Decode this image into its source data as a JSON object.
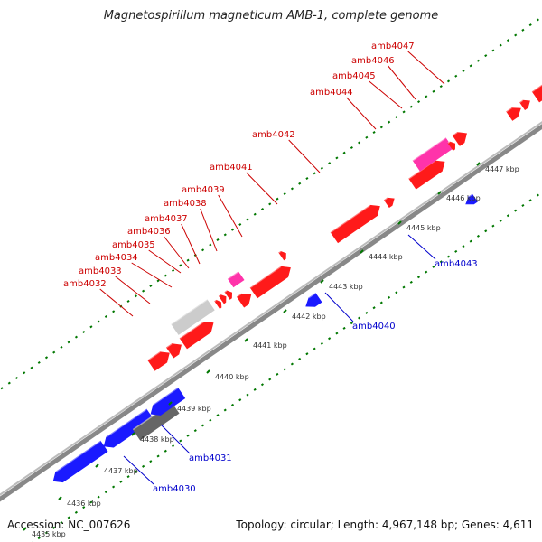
{
  "title": "Magnetospirillum magneticum AMB-1, complete genome",
  "footer": {
    "accession": "Accession: NC_007626",
    "summary": "Topology: circular; Length: 4,967,148 bp; Genes: 4,611"
  },
  "colors": {
    "forward_gene": "#ff1a1a",
    "reverse_gene": "#1a1aff",
    "rna_gene": "#ff33aa",
    "pseudo_gene_light": "#cccccc",
    "pseudo_gene_dark": "#666666",
    "backbone": "#888888",
    "tick_green": "#007700",
    "label_forward": "#cc0000",
    "label_reverse": "#0000cc"
  },
  "scale_labels": [
    "4435 kbp",
    "4436 kbp",
    "4437 kbp",
    "4438 kbp",
    "4439 kbp",
    "4440 kbp",
    "4441 kbp",
    "4442 kbp",
    "4443 kbp",
    "4444 kbp",
    "4445 kbp",
    "4446 kbp",
    "4447 kbp"
  ],
  "forward_labels": [
    "amb4032",
    "amb4033",
    "amb4034",
    "amb4035",
    "amb4036",
    "amb4037",
    "amb4038",
    "amb4039",
    "amb4041",
    "amb4042",
    "amb4044",
    "amb4045",
    "amb4046",
    "amb4047"
  ],
  "reverse_labels": [
    "amb4030",
    "amb4031",
    "amb4040",
    "amb4043"
  ]
}
